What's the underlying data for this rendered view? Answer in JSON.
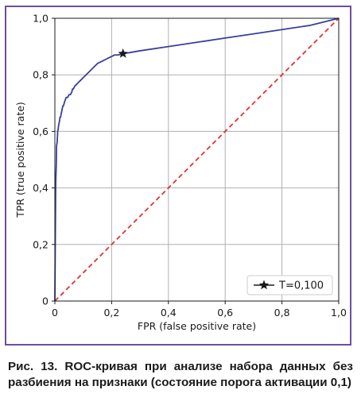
{
  "chart_data": {
    "type": "line",
    "xlabel": "FPR (false positive rate)",
    "ylabel": "TPR (true positive rate)",
    "xlim": [
      0,
      1
    ],
    "ylim": [
      0,
      1
    ],
    "xticks": [
      "0",
      "0,2",
      "0,4",
      "0,6",
      "0,8",
      "1,0"
    ],
    "yticks": [
      "0",
      "0,2",
      "0,4",
      "0,6",
      "0,8",
      "1,0"
    ],
    "grid": true,
    "legend_position": "lower-right",
    "series": [
      {
        "color": "#3a3f9e",
        "x": [
          0.0,
          0.003,
          0.005,
          0.006,
          0.008,
          0.009,
          0.01,
          0.012,
          0.013,
          0.015,
          0.017,
          0.018,
          0.02,
          0.022,
          0.024,
          0.026,
          0.028,
          0.03,
          0.033,
          0.036,
          0.04,
          0.045,
          0.05,
          0.055,
          0.06,
          0.062,
          0.065,
          0.07,
          0.08,
          0.09,
          0.1,
          0.11,
          0.12,
          0.13,
          0.14,
          0.15,
          0.16,
          0.17,
          0.18,
          0.19,
          0.2,
          0.21,
          0.22,
          0.23,
          0.24,
          0.26,
          0.3,
          0.4,
          0.5,
          0.6,
          0.7,
          0.8,
          0.9,
          1.0
        ],
        "y": [
          0.0,
          0.42,
          0.48,
          0.55,
          0.56,
          0.58,
          0.6,
          0.61,
          0.62,
          0.63,
          0.64,
          0.65,
          0.65,
          0.66,
          0.67,
          0.68,
          0.69,
          0.69,
          0.7,
          0.71,
          0.72,
          0.72,
          0.73,
          0.73,
          0.74,
          0.75,
          0.75,
          0.76,
          0.77,
          0.78,
          0.79,
          0.8,
          0.81,
          0.82,
          0.83,
          0.84,
          0.845,
          0.85,
          0.855,
          0.86,
          0.865,
          0.87,
          0.87,
          0.872,
          0.875,
          0.878,
          0.885,
          0.9,
          0.915,
          0.93,
          0.945,
          0.96,
          0.975,
          1.0
        ]
      },
      {
        "color": "#e8312f",
        "x": [
          0,
          1
        ],
        "y": [
          0,
          1
        ]
      }
    ],
    "marker": {
      "label": "T=0,100",
      "x": 0.24,
      "y": 0.875
    }
  },
  "caption": "Рис. 13. ROC-кривая при анализе набора данных без разбиения на признаки (состояние порога активации 0,1)"
}
